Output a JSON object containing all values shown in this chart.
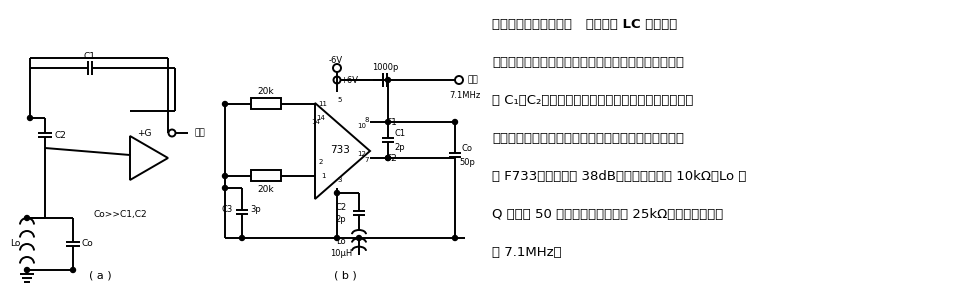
{
  "bg_color": "#ffffff",
  "lc": "#000000",
  "figsize": [
    9.7,
    2.91
  ],
  "dpi": 100,
  "right_text_lines": [
    "差动式富兰克林振荡器   富兰克林 LC 振荡器是",
    "一种适用于集成电路，频率比较稳定的振荡器。用小电",
    "容 C₁、C₂将谐振回路与集成放大器隔离，减小集成电",
    "路对回路的影响，使频率稳定。该电路采用全差分放大",
    "器 F733，增益大于 38dB，输入电阵大于 10kΩ，Lo 的",
    "Q 値大于 50 时，则谐振电阵大于 25kΩ。振荡频率约等",
    "于 7.1MHz。"
  ],
  "label_a": "( a )",
  "label_b": "( b )"
}
